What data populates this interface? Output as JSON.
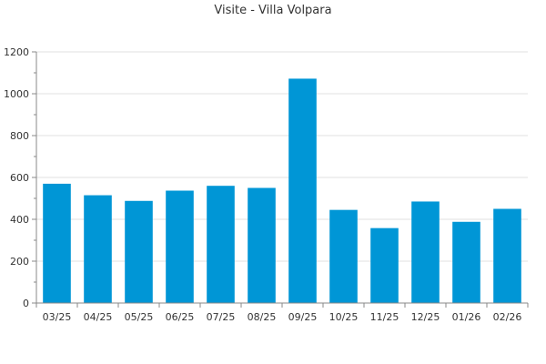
{
  "chart_data": {
    "type": "bar",
    "title": "Visite - Villa Volpara",
    "categories": [
      "03/25",
      "04/25",
      "05/25",
      "06/25",
      "07/25",
      "08/25",
      "09/25",
      "10/25",
      "11/25",
      "12/25",
      "01/26",
      "02/26"
    ],
    "values": [
      570,
      515,
      488,
      537,
      560,
      550,
      1072,
      445,
      358,
      485,
      388,
      450
    ],
    "ylim": [
      0,
      1200
    ],
    "yticks": [
      0,
      200,
      400,
      600,
      800,
      1000,
      1200
    ],
    "grid": true,
    "legend": "none",
    "colors": {
      "bar": "#0096d6",
      "grid": "#e0e0e0",
      "axis": "#888888",
      "text": "#333333"
    }
  }
}
